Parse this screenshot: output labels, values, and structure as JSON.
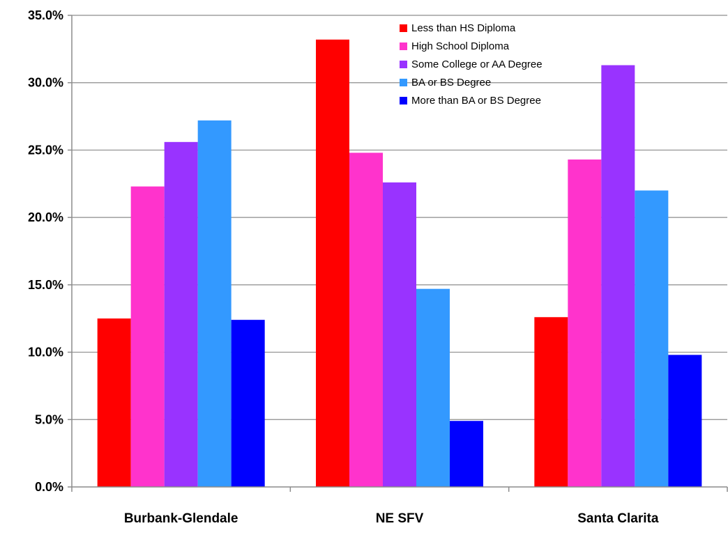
{
  "chart_data": {
    "type": "bar",
    "title": "",
    "xlabel": "",
    "ylabel": "",
    "ylim": [
      0,
      35
    ],
    "y_tick_values": [
      0,
      5,
      10,
      15,
      20,
      25,
      30,
      35
    ],
    "y_tick_labels": [
      "0.0%",
      "5.0%",
      "10.0%",
      "15.0%",
      "20.0%",
      "25.0%",
      "30.0%",
      "35.0%"
    ],
    "grid": true,
    "legend_position": "top-right",
    "categories": [
      "Burbank-Glendale",
      "NE SFV",
      "Santa Clarita"
    ],
    "series": [
      {
        "name": "Less than HS Diploma",
        "color": "#ff0000",
        "values": [
          12.5,
          33.2,
          12.6
        ]
      },
      {
        "name": "High School Diploma",
        "color": "#ff33cc",
        "values": [
          22.3,
          24.8,
          24.3
        ]
      },
      {
        "name": "Some College or AA Degree",
        "color": "#9933ff",
        "values": [
          25.6,
          22.6,
          31.3
        ]
      },
      {
        "name": "BA or BS Degree",
        "color": "#3399ff",
        "values": [
          27.2,
          14.7,
          22.0
        ]
      },
      {
        "name": "More than BA or BS Degree",
        "color": "#0000ff",
        "values": [
          12.4,
          4.9,
          9.8
        ]
      }
    ]
  }
}
